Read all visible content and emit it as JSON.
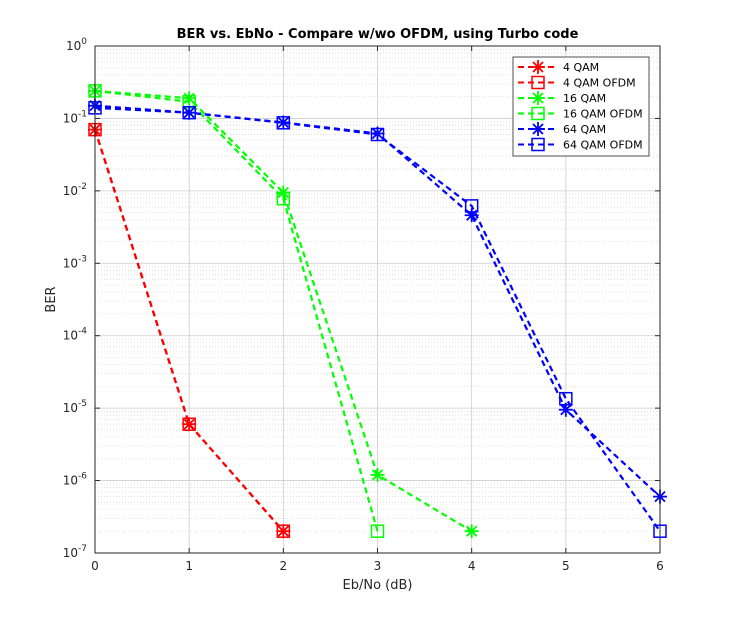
{
  "chart_data": {
    "type": "line",
    "title": "BER vs. EbNo - Compare w/wo OFDM, using Turbo code",
    "xlabel": "Eb/No (dB)",
    "ylabel": "BER",
    "xlim": [
      0,
      6
    ],
    "ylim": [
      1e-07,
      1
    ],
    "yscale": "log",
    "xticks": [
      "0",
      "1",
      "2",
      "3",
      "4",
      "5",
      "6"
    ],
    "yticks": [
      {
        "base": "10",
        "exp": "-7"
      },
      {
        "base": "10",
        "exp": "-6"
      },
      {
        "base": "10",
        "exp": "-5"
      },
      {
        "base": "10",
        "exp": "-4"
      },
      {
        "base": "10",
        "exp": "-3"
      },
      {
        "base": "10",
        "exp": "-2"
      },
      {
        "base": "10",
        "exp": "-1"
      },
      {
        "base": "10",
        "exp": "0"
      }
    ],
    "grid": true,
    "legend_position": "top-right",
    "series": [
      {
        "name": "4 QAM",
        "color": "#ff0000",
        "marker": "asterisk",
        "x": [
          0,
          1,
          2
        ],
        "y": [
          0.07,
          6e-06,
          2e-07
        ]
      },
      {
        "name": "4 QAM OFDM",
        "color": "#ff0000",
        "marker": "square",
        "x": [
          0,
          1,
          2
        ],
        "y": [
          0.07,
          6e-06,
          2e-07
        ]
      },
      {
        "name": "16 QAM",
        "color": "#00ff00",
        "marker": "asterisk",
        "x": [
          0,
          1,
          2,
          3,
          4
        ],
        "y": [
          0.24,
          0.19,
          0.0095,
          1.2e-06,
          2e-07
        ]
      },
      {
        "name": "16 QAM OFDM",
        "color": "#00ff00",
        "marker": "square",
        "x": [
          0,
          1,
          2,
          3
        ],
        "y": [
          0.24,
          0.17,
          0.0078,
          2e-07
        ]
      },
      {
        "name": "64 QAM",
        "color": "#0000ff",
        "marker": "asterisk",
        "x": [
          0,
          1,
          2,
          3,
          4,
          5,
          6
        ],
        "y": [
          0.15,
          0.12,
          0.088,
          0.062,
          0.0046,
          9.5e-06,
          6e-07
        ]
      },
      {
        "name": "64 QAM OFDM",
        "color": "#0000ff",
        "marker": "square",
        "x": [
          0,
          1,
          2,
          3,
          4,
          5,
          6
        ],
        "y": [
          0.14,
          0.12,
          0.087,
          0.06,
          0.0062,
          1.35e-05,
          2e-07
        ]
      }
    ]
  }
}
